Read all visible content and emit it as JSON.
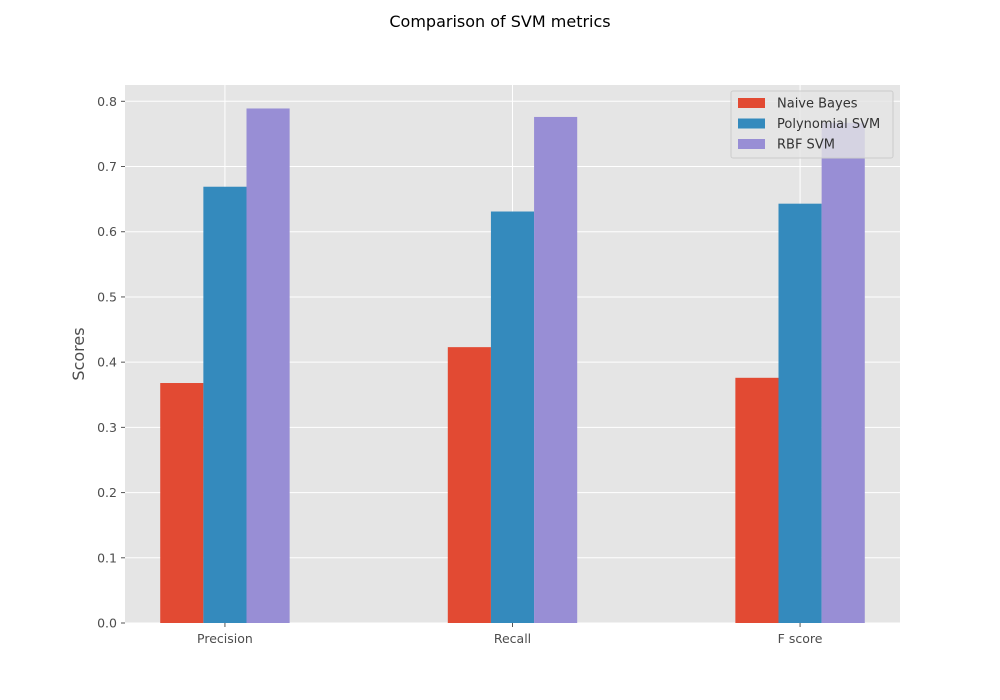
{
  "chart_data": {
    "type": "bar",
    "title": "Comparison of SVM metrics",
    "xlabel": "",
    "ylabel": "Scores",
    "categories": [
      "Precision",
      "Recall",
      "F score"
    ],
    "series": [
      {
        "name": "Naive Bayes",
        "values": [
          0.368,
          0.423,
          0.376
        ],
        "color": "#e24a33"
      },
      {
        "name": "Polynomial SVM",
        "values": [
          0.669,
          0.631,
          0.643
        ],
        "color": "#348abd"
      },
      {
        "name": "RBF SVM",
        "values": [
          0.789,
          0.776,
          0.767
        ],
        "color": "#988ed5"
      }
    ],
    "ylim": [
      0,
      0.825
    ],
    "yticks": [
      "0.0",
      "0.1",
      "0.2",
      "0.3",
      "0.4",
      "0.5",
      "0.6",
      "0.7",
      "0.8"
    ],
    "grid": true,
    "legend_position": "top-right",
    "background_color": "#e5e5e5",
    "grid_color": "#ffffff"
  }
}
